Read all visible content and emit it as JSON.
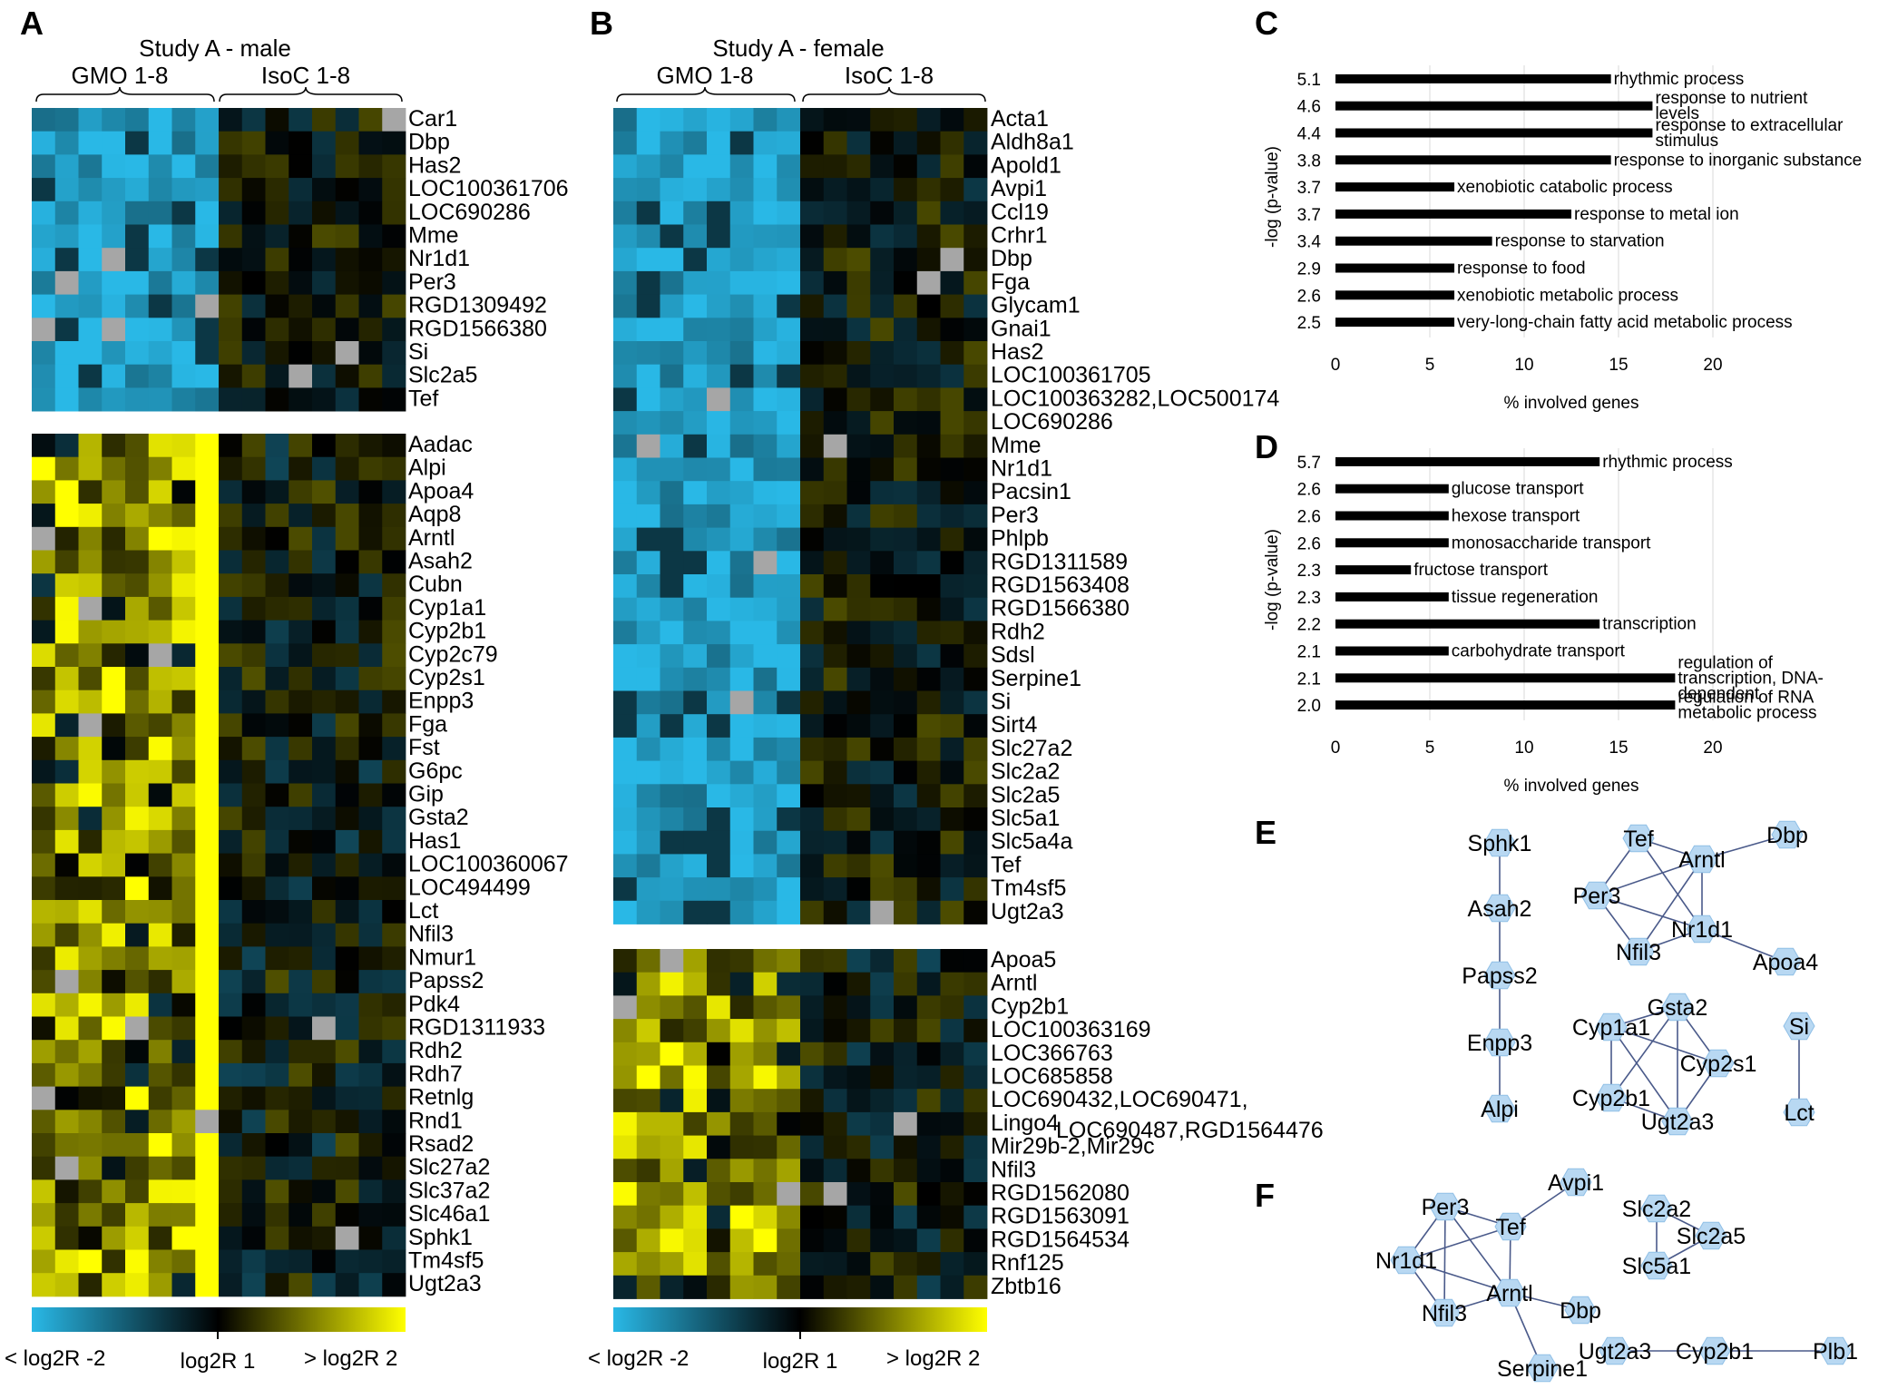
{
  "colors": {
    "cyan": "#29b8e6",
    "black": "#000000",
    "yellow": "#ffff00",
    "gray": "#a6a6a6",
    "node_fill": "#b8d8f2",
    "node_stroke": "#8fbfe6",
    "edge": "#4a5a8a",
    "bar": "#000000"
  },
  "panels": {
    "A": {
      "letter": "A",
      "title": "Study A - male",
      "group1": "GMO 1-8",
      "group2": "IsoC 1-8",
      "block1_genes": [
        "Car1",
        "Dbp",
        "Has2",
        "LOC100361706",
        "LOC690286",
        "Mme",
        "Nr1d1",
        "Per3",
        "RGD1309492",
        "RGD1566380",
        "Si",
        "Slc2a5",
        "Tef"
      ],
      "block2_genes": [
        "Aadac",
        "Alpi",
        "Apoa4",
        "Aqp8",
        "Arntl",
        "Asah2",
        "Cubn",
        "Cyp1a1",
        "Cyp2b1",
        "Cyp2c79",
        "Cyp2s1",
        "Enpp3",
        "Fga",
        "Fst",
        "G6pc",
        "Gip",
        "Gsta2",
        "Has1",
        "LOC100360067",
        "LOC494499",
        "Lct",
        "Nfil3",
        "Nmur1",
        "Papss2",
        "Pdk4",
        "RGD1311933",
        "Rdh2",
        "Rdh7",
        "Retnlg",
        "Rnd1",
        "Rsad2",
        "Slc27a2",
        "Slc37a2",
        "Slc46a1",
        "Sphk1",
        "Tm4sf5",
        "Ugt2a3"
      ],
      "scale_labels": [
        "< log2R -2",
        "log2R 1",
        "> log2R 2"
      ]
    },
    "B": {
      "letter": "B",
      "title": "Study A - female",
      "group1": "GMO 1-8",
      "group2": "IsoC 1-8",
      "block1_genes": [
        "Acta1",
        "Aldh8a1",
        "Apold1",
        "Avpi1",
        "Ccl19",
        "Crhr1",
        "Dbp",
        "Fga",
        "Glycam1",
        "Gnai1",
        "Has2",
        "LOC100361705",
        "LOC100363282,LOC500174",
        "LOC690286",
        "Mme",
        "Nr1d1",
        "Pacsin1",
        "Per3",
        "Phlpb",
        "RGD1311589",
        "RGD1563408",
        "RGD1566380",
        "Rdh2",
        "Sdsl",
        "Serpine1",
        "Si",
        "Sirt4",
        "Slc27a2",
        "Slc2a2",
        "Slc2a5",
        "Slc5a1",
        "Slc5a4a",
        "Tef",
        "Tm4sf5",
        "Ugt2a3"
      ],
      "block2_genes": [
        "Apoa5",
        "Arntl",
        "Cyp2b1",
        "LOC100363169",
        "LOC366763",
        "LOC685858",
        "LOC690432,LOC690471,",
        "Lingo4",
        "Mir29b-2,Mir29c",
        "Nfil3",
        "RGD1562080",
        "RGD1563091",
        "RGD1564534",
        "Rnf125",
        "Zbtb16"
      ],
      "extra_label": "LOC690487,RGD1564476",
      "scale_labels": [
        "< log2R -2",
        "log2R 1",
        "> log2R 2"
      ]
    }
  },
  "chart_data": [
    {
      "panel": "C",
      "type": "bar",
      "orientation": "horizontal",
      "categories": [
        "rhythmic process",
        "response to nutrient levels",
        "response to extracellular stimulus",
        "response to inorganic substance",
        "xenobiotic catabolic process",
        "response to metal ion",
        "response to starvation",
        "response to food",
        "xenobiotic metabolic process",
        "very-long-chain fatty acid metabolic process"
      ],
      "category_lines": [
        [
          "rhythmic process"
        ],
        [
          "response to nutrient",
          "levels"
        ],
        [
          "response to extracellular",
          "stimulus"
        ],
        [
          "response to inorganic substance"
        ],
        [
          "xenobiotic catabolic process"
        ],
        [
          "response to metal ion"
        ],
        [
          "response to starvation"
        ],
        [
          "response to food"
        ],
        [
          "xenobiotic metabolic process"
        ],
        [
          "very-long-chain fatty acid metabolic process"
        ]
      ],
      "pvalue_labels": [
        "5.1",
        "4.6",
        "4.4",
        "3.8",
        "3.7",
        "3.7",
        "3.4",
        "2.9",
        "2.6",
        "2.5"
      ],
      "values": [
        14.6,
        16.8,
        16.8,
        14.6,
        6.3,
        12.5,
        8.3,
        6.3,
        6.3,
        6.3
      ],
      "xlabel": "% involved genes",
      "ylabel": "-log (p-value)",
      "xticks": [
        "0",
        "5",
        "10",
        "15",
        "20"
      ],
      "xlim": [
        0,
        25
      ],
      "grid": true
    },
    {
      "panel": "D",
      "type": "bar",
      "orientation": "horizontal",
      "categories": [
        "rhythmic process",
        "glucose transport",
        "hexose transport",
        "monosaccharide transport",
        "fructose transport",
        "tissue regeneration",
        "transcription",
        "carbohydrate transport",
        "regulation of transcription, DNA-dependent",
        "regulation of RNA metabolic process"
      ],
      "category_lines": [
        [
          "rhythmic process"
        ],
        [
          "glucose transport"
        ],
        [
          "hexose transport"
        ],
        [
          "monosaccharide transport"
        ],
        [
          "fructose transport"
        ],
        [
          "tissue regeneration"
        ],
        [
          "transcription"
        ],
        [
          "carbohydrate transport"
        ],
        [
          "regulation of",
          "transcription, DNA-",
          "dependent"
        ],
        [
          "regulation of RNA",
          "metabolic process"
        ]
      ],
      "pvalue_labels": [
        "5.7",
        "2.6",
        "2.6",
        "2.6",
        "2.3",
        "2.3",
        "2.2",
        "2.1",
        "2.1",
        "2.0"
      ],
      "values": [
        14.0,
        6.0,
        6.0,
        6.0,
        4.0,
        6.0,
        14.0,
        6.0,
        18.0,
        18.0
      ],
      "xlabel": "% involved genes",
      "ylabel": "-log (p-value)",
      "xticks": [
        "0",
        "5",
        "10",
        "15",
        "20"
      ],
      "xlim": [
        0,
        25
      ],
      "grid": true
    }
  ],
  "networks": {
    "E": {
      "letter": "E",
      "nodes": [
        "Sphk1",
        "Asah2",
        "Papss2",
        "Enpp3",
        "Alpi",
        "Tef",
        "Arntl",
        "Dbp",
        "Per3",
        "Nr1d1",
        "Nfil3",
        "Apoa4",
        "Gsta2",
        "Cyp1a1",
        "Cyp2s1",
        "Cyp2b1",
        "Ugt2a3",
        "Si",
        "Lct"
      ],
      "edges": [
        [
          "Sphk1",
          "Asah2"
        ],
        [
          "Asah2",
          "Papss2"
        ],
        [
          "Papss2",
          "Enpp3"
        ],
        [
          "Enpp3",
          "Alpi"
        ],
        [
          "Tef",
          "Arntl"
        ],
        [
          "Tef",
          "Per3"
        ],
        [
          "Tef",
          "Nr1d1"
        ],
        [
          "Arntl",
          "Dbp"
        ],
        [
          "Arntl",
          "Per3"
        ],
        [
          "Arntl",
          "Nr1d1"
        ],
        [
          "Arntl",
          "Nfil3"
        ],
        [
          "Per3",
          "Nr1d1"
        ],
        [
          "Per3",
          "Nfil3"
        ],
        [
          "Nr1d1",
          "Nfil3"
        ],
        [
          "Nr1d1",
          "Apoa4"
        ],
        [
          "Gsta2",
          "Cyp1a1"
        ],
        [
          "Gsta2",
          "Cyp2s1"
        ],
        [
          "Gsta2",
          "Cyp2b1"
        ],
        [
          "Gsta2",
          "Ugt2a3"
        ],
        [
          "Cyp1a1",
          "Cyp2s1"
        ],
        [
          "Cyp1a1",
          "Cyp2b1"
        ],
        [
          "Cyp1a1",
          "Ugt2a3"
        ],
        [
          "Cyp2s1",
          "Ugt2a3"
        ],
        [
          "Cyp2b1",
          "Ugt2a3"
        ],
        [
          "Si",
          "Lct"
        ]
      ]
    },
    "F": {
      "letter": "F",
      "nodes": [
        "Per3",
        "Tef",
        "Avpi1",
        "Nr1d1",
        "Nfil3",
        "Arntl",
        "Dbp",
        "Serpine1",
        "Slc2a2",
        "Slc2a5",
        "Slc5a1",
        "Ugt2a3",
        "Cyp2b1",
        "Plb1"
      ],
      "edges": [
        [
          "Per3",
          "Tef"
        ],
        [
          "Per3",
          "Nr1d1"
        ],
        [
          "Per3",
          "Nfil3"
        ],
        [
          "Per3",
          "Arntl"
        ],
        [
          "Tef",
          "Avpi1"
        ],
        [
          "Tef",
          "Nr1d1"
        ],
        [
          "Tef",
          "Arntl"
        ],
        [
          "Nr1d1",
          "Nfil3"
        ],
        [
          "Nr1d1",
          "Arntl"
        ],
        [
          "Nfil3",
          "Arntl"
        ],
        [
          "Arntl",
          "Dbp"
        ],
        [
          "Arntl",
          "Serpine1"
        ],
        [
          "Slc2a2",
          "Slc2a5"
        ],
        [
          "Slc2a2",
          "Slc5a1"
        ],
        [
          "Slc2a5",
          "Slc5a1"
        ],
        [
          "Ugt2a3",
          "Cyp2b1"
        ],
        [
          "Cyp2b1",
          "Plb1"
        ]
      ]
    }
  }
}
